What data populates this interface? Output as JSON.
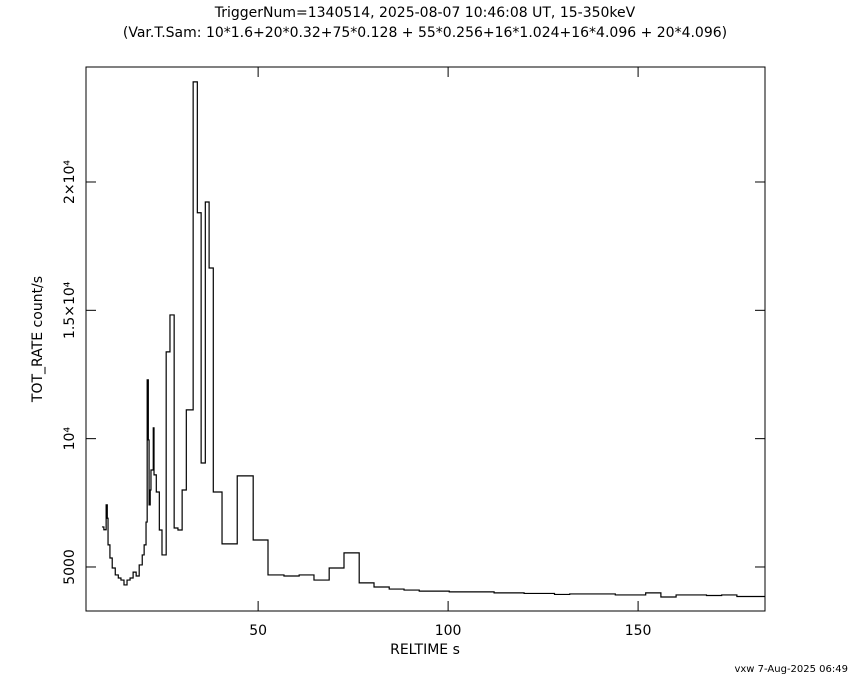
{
  "chart_data": {
    "type": "step",
    "title": "TriggerNum=1340514, 2025-08-07 10:46:08 UT, 15-350keV",
    "subtitle": "(Var.T.Sam: 10*1.6+20*0.32+75*0.128  +  55*0.256+16*1.024+16*4.096  +  20*4.096)",
    "x_label": "RELTIME  s",
    "y_label": "TOT_RATE  count/s",
    "footer": "vxw  7-Aug-2025 06:49",
    "color": "#000000",
    "xlim": [
      4.7,
      183.4
    ],
    "ylim": [
      3285,
      24480
    ],
    "xticks": [
      50,
      100,
      150
    ],
    "yticks": [
      5000,
      {
        "value": 10000,
        "label": "10⁴"
      },
      {
        "value": 15000,
        "label": "1.5×10⁴"
      },
      {
        "value": 20000,
        "label": "2×10⁴"
      }
    ],
    "x": [
      8.9,
      9.4,
      10.0,
      10.3,
      10.5,
      11.0,
      11.6,
      12.4,
      13.2,
      13.9,
      14.7,
      15.5,
      16.3,
      17.1,
      17.9,
      18.7,
      19.5,
      20.0,
      20.5,
      20.8,
      21.1,
      21.3,
      21.6,
      21.8,
      22.4,
      22.6,
      23.2,
      24.0,
      24.7,
      25.8,
      26.8,
      27.9,
      28.9,
      30.0,
      31.1,
      32.9,
      34.0,
      35.0,
      36.1,
      37.1,
      38.2,
      40.5,
      44.5,
      48.7,
      52.6,
      56.8,
      60.8,
      64.7,
      68.7,
      72.6,
      76.6,
      80.5,
      84.5,
      88.4,
      92.4,
      100.3,
      108.2,
      112.1,
      120.0,
      128.0,
      132.0,
      136.0,
      144.0,
      152.0,
      156.0,
      160.0,
      168.0,
      172.0,
      176.0,
      183.4
    ],
    "values": [
      6560,
      6450,
      7420,
      6900,
      5860,
      5350,
      4960,
      4690,
      4570,
      4490,
      4300,
      4490,
      4570,
      4800,
      4650,
      5080,
      5470,
      5860,
      6750,
      12290,
      9950,
      7420,
      8000,
      8780,
      10420,
      8590,
      7920,
      6440,
      5470,
      13380,
      14820,
      6520,
      6440,
      8000,
      11120,
      23900,
      18800,
      9050,
      19220,
      16650,
      7920,
      5900,
      8550,
      6050,
      4690,
      4650,
      4690,
      4490,
      4960,
      5550,
      4380,
      4220,
      4140,
      4100,
      4060,
      4030,
      4030,
      3990,
      3970,
      3930,
      3950,
      3950,
      3910,
      3990,
      3830,
      3910,
      3890,
      3910,
      3850,
      3850
    ]
  }
}
